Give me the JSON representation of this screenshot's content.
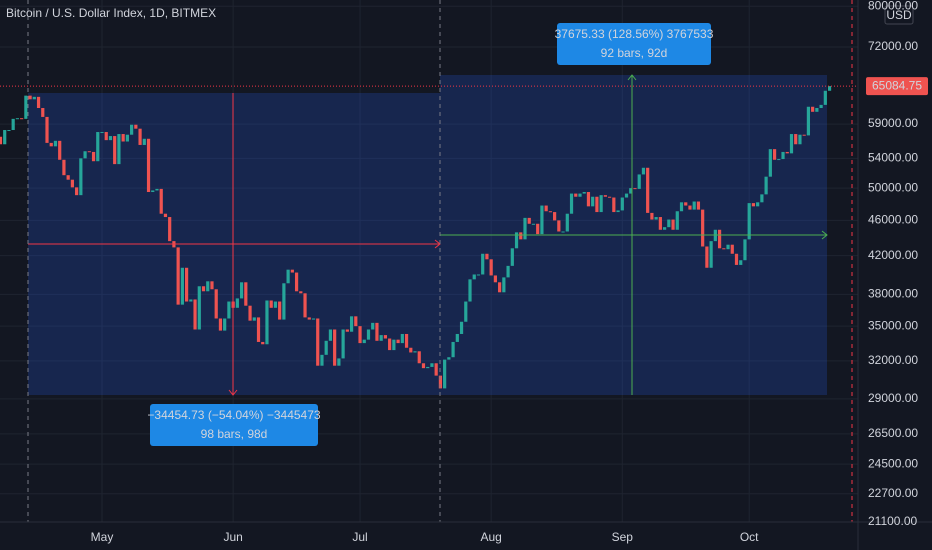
{
  "chart_data": {
    "type": "candlestick",
    "title": "Bitcoin / U.S. Dollar Index, 1D, BITMEX",
    "currency": "USD",
    "log_scale": true,
    "grid": true,
    "up_color": "#26a69a",
    "down_color": "#ef5350",
    "categories": [
      null,
      null,
      null,
      null,
      null,
      null,
      null,
      null,
      null,
      null,
      null,
      null,
      null,
      null,
      null,
      null,
      null,
      null,
      null,
      null,
      null,
      null,
      null,
      null,
      null,
      "May",
      null,
      null,
      null,
      null,
      null,
      null,
      null,
      null,
      null,
      null,
      null,
      null,
      null,
      null,
      null,
      null,
      null,
      null,
      null,
      null,
      null,
      null,
      null,
      null,
      null,
      null,
      null,
      null,
      null,
      null,
      "Jun",
      null,
      null,
      null,
      null,
      null,
      null,
      null,
      null,
      null,
      null,
      null,
      null,
      null,
      null,
      null,
      null,
      null,
      null,
      null,
      null,
      null,
      null,
      null,
      null,
      null,
      null,
      null,
      null,
      null,
      "Jul",
      null,
      null,
      null,
      null,
      null,
      null,
      null,
      null,
      null,
      null,
      null,
      null,
      null,
      null,
      null,
      null,
      null,
      null,
      null,
      null,
      null,
      null,
      null,
      null,
      null,
      null,
      null,
      null,
      null,
      null,
      "Aug",
      null,
      null,
      null,
      null,
      null,
      null,
      null,
      null,
      null,
      null,
      null,
      null,
      null,
      null,
      null,
      null,
      null,
      null,
      null,
      null,
      null,
      null,
      null,
      null,
      null,
      null,
      null,
      null,
      null,
      null,
      "Sep",
      null,
      null,
      null,
      null,
      null,
      null,
      null,
      null,
      null,
      null,
      null,
      null,
      null,
      null,
      null,
      null,
      null,
      null,
      null,
      null,
      null,
      null,
      null,
      null,
      null,
      null,
      null,
      null,
      null,
      "Oct",
      null,
      null,
      null,
      null,
      null,
      null,
      null,
      null,
      null,
      null,
      null,
      null,
      null,
      null,
      null,
      null,
      null,
      null,
      null
    ],
    "close": [
      57100,
      56000,
      58100,
      58100,
      59800,
      59900,
      59800,
      63500,
      62900,
      63300,
      61500,
      60100,
      56200,
      55700,
      56500,
      53800,
      51700,
      51100,
      50100,
      49100,
      54000,
      55000,
      54900,
      53600,
      57800,
      57800,
      56600,
      57200,
      53200,
      57500,
      56400,
      57400,
      58900,
      58300,
      55900,
      56800,
      49500,
      49700,
      49900,
      46800,
      46400,
      43600,
      42900,
      37000,
      40700,
      37300,
      37500,
      34700,
      38800,
      38300,
      39300,
      38500,
      35700,
      34600,
      35700,
      37300,
      36700,
      37600,
      39200,
      36900,
      35500,
      35800,
      33600,
      33400,
      37400,
      36700,
      37300,
      35600,
      39100,
      40500,
      40200,
      38300,
      38100,
      35800,
      35600,
      35700,
      31600,
      32500,
      33700,
      34700,
      31600,
      32200,
      34700,
      34500,
      35900,
      35000,
      33500,
      33800,
      34700,
      35300,
      33700,
      34200,
      33900,
      32900,
      33800,
      33500,
      34300,
      33100,
      32700,
      32800,
      31800,
      31400,
      31500,
      31800,
      30800,
      29800,
      32100,
      32300,
      33600,
      34300,
      35400,
      37300,
      39500,
      40000,
      40000,
      42200,
      41600,
      39900,
      39200,
      38200,
      39700,
      40900,
      42800,
      44600,
      43800,
      46300,
      45600,
      45600,
      44400,
      47800,
      47100,
      47000,
      46000,
      44700,
      44700,
      46800,
      49300,
      48900,
      49300,
      49500,
      47700,
      48900,
      47000,
      49100,
      48900,
      48800,
      47000,
      47200,
      48800,
      49300,
      50000,
      49900,
      51800,
      52700,
      46900,
      46100,
      46400,
      44900,
      45200,
      46100,
      44900,
      47100,
      48200,
      47800,
      47300,
      48300,
      47300,
      43000,
      40700,
      43600,
      44900,
      42800,
      42700,
      43200,
      42200,
      41000,
      41500,
      43800,
      48100,
      47700,
      48200,
      49200,
      51500,
      55300,
      53800,
      53900,
      54900,
      54700,
      57500,
      56000,
      57400,
      57300,
      61700,
      60900,
      61500,
      62000,
      64300,
      65084.75
    ],
    "ylim": [
      21100,
      81300
    ],
    "yticks": [
      {
        "value": 80000,
        "label": "80000.00"
      },
      {
        "value": 72000,
        "label": "72000.00"
      },
      {
        "value": 59000,
        "label": "59000.00"
      },
      {
        "value": 54000,
        "label": "54000.00"
      },
      {
        "value": 50000,
        "label": "50000.00"
      },
      {
        "value": 46000,
        "label": "46000.00"
      },
      {
        "value": 42000,
        "label": "42000.00"
      },
      {
        "value": 38000,
        "label": "38000.00"
      },
      {
        "value": 35000,
        "label": "35000.00"
      },
      {
        "value": 32000,
        "label": "32000.00"
      },
      {
        "value": 29000,
        "label": "29000.00"
      },
      {
        "value": 26500,
        "label": "26500.00"
      },
      {
        "value": 24500,
        "label": "24500.00"
      },
      {
        "value": 22700,
        "label": "22700.00"
      },
      {
        "value": 21100,
        "label": "21100.00"
      }
    ],
    "measure_down": {
      "line1": "−34454.73 (−54.04%) −3445473",
      "line2": "98 bars, 98d"
    },
    "measure_up": {
      "line1": "37675.33 (128.56%) 3767533",
      "line2": "92 bars, 92d"
    }
  }
}
